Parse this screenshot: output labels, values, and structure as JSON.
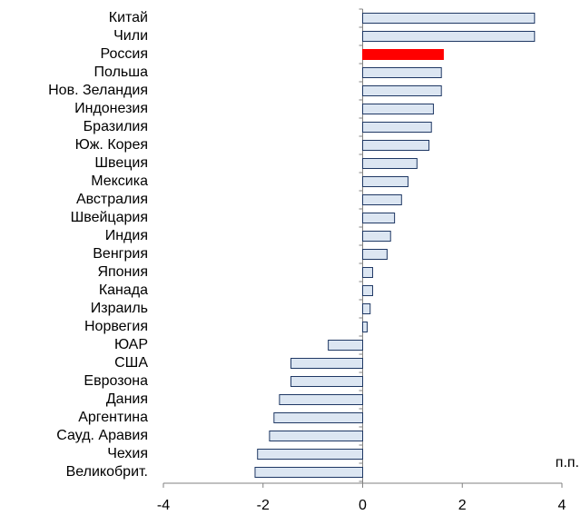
{
  "chart_data": {
    "type": "hbar",
    "x_label": "п.п.",
    "categories": [
      "Китай",
      "Чили",
      "Россия",
      "Польша",
      "Нов. Зеландия",
      "Индонезия",
      "Бразилия",
      "Юж. Корея",
      "Швеция",
      "Мексика",
      "Австралия",
      "Швейцария",
      "Индия",
      "Венгрия",
      "Япония",
      "Канада",
      "Израиль",
      "Норвегия",
      "ЮАР",
      "США",
      "Еврозона",
      "Дания",
      "Аргентина",
      "Сауд. Аравия",
      "Чехия",
      "Великобрит."
    ],
    "values": [
      3.45,
      3.45,
      1.62,
      1.58,
      1.58,
      1.42,
      1.38,
      1.33,
      1.09,
      0.91,
      0.78,
      0.64,
      0.56,
      0.49,
      0.2,
      0.2,
      0.15,
      0.09,
      -0.69,
      -1.44,
      -1.44,
      -1.67,
      -1.78,
      -1.87,
      -2.11,
      -2.16
    ],
    "colors": [
      "#dce6f2",
      "#dce6f2",
      "#ff0000",
      "#dce6f2",
      "#dce6f2",
      "#dce6f2",
      "#dce6f2",
      "#dce6f2",
      "#dce6f2",
      "#dce6f2",
      "#dce6f2",
      "#dce6f2",
      "#dce6f2",
      "#dce6f2",
      "#dce6f2",
      "#dce6f2",
      "#dce6f2",
      "#dce6f2",
      "#dce6f2",
      "#dce6f2",
      "#dce6f2",
      "#dce6f2",
      "#dce6f2",
      "#dce6f2",
      "#dce6f2",
      "#dce6f2"
    ],
    "xlim": [
      -4,
      4
    ],
    "xticks": [
      -4,
      -2,
      0,
      2,
      4
    ],
    "grid": false
  }
}
